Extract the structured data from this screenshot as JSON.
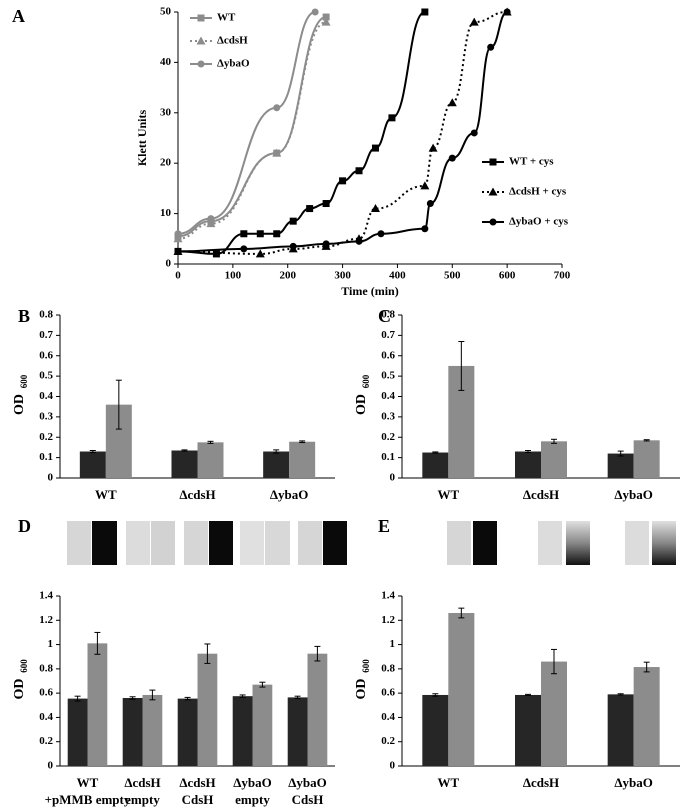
{
  "chart_data": [
    {
      "type": "line",
      "label": "A",
      "x_label": "Time (min)",
      "y_label": "Klett Units",
      "xlim": [
        0,
        700
      ],
      "xticks": [
        0,
        100,
        200,
        300,
        400,
        500,
        600,
        700
      ],
      "ylim": [
        0,
        50
      ],
      "yticks": [
        0,
        10,
        20,
        30,
        40,
        50
      ],
      "series": [
        {
          "name": "WT",
          "color": "#8c8c8c",
          "marker": "square",
          "line_style": "solid",
          "legend": "top-left",
          "x": [
            0,
            60,
            180,
            270
          ],
          "values": [
            5.5,
            8.5,
            22,
            49
          ]
        },
        {
          "name": "ΔcdsH",
          "color": "#8c8c8c",
          "marker": "triangle",
          "line_style": "dotted",
          "legend": "top-left",
          "x": [
            0,
            60,
            180,
            270
          ],
          "values": [
            5,
            8,
            22,
            48
          ]
        },
        {
          "name": "ΔybaO",
          "color": "#8c8c8c",
          "marker": "circle",
          "line_style": "solid",
          "legend": "top-left",
          "x": [
            0,
            60,
            180,
            250
          ],
          "values": [
            6,
            9,
            31,
            50
          ]
        },
        {
          "name": "WT + cys",
          "color": "#000000",
          "marker": "square",
          "line_style": "solid",
          "legend": "right",
          "x": [
            0,
            70,
            120,
            150,
            180,
            210,
            240,
            270,
            300,
            330,
            360,
            390,
            450
          ],
          "values": [
            2.5,
            2,
            6,
            6,
            6,
            8.5,
            11,
            12,
            16.5,
            18.5,
            23,
            29,
            50
          ]
        },
        {
          "name": "ΔcdsH + cys",
          "color": "#000000",
          "marker": "triangle",
          "line_style": "dotted",
          "legend": "right",
          "x": [
            0,
            150,
            210,
            270,
            330,
            360,
            450,
            465,
            500,
            540,
            600
          ],
          "values": [
            2.5,
            2,
            3,
            3.5,
            5,
            11,
            15.5,
            23,
            32,
            48,
            50
          ]
        },
        {
          "name": "ΔybaO + cys",
          "color": "#000000",
          "marker": "circle",
          "line_style": "solid",
          "legend": "right",
          "x": [
            0,
            120,
            210,
            270,
            330,
            370,
            450,
            460,
            500,
            540,
            570,
            600
          ],
          "values": [
            2.5,
            3,
            3.5,
            4,
            4.5,
            6,
            7,
            12,
            21,
            26,
            43,
            50
          ]
        }
      ]
    },
    {
      "type": "bar",
      "label": "B",
      "y_label": "OD",
      "y_label_sub": "600",
      "categories": [
        "WT",
        "ΔcdsH",
        "ΔybaO"
      ],
      "ylim": [
        0,
        0.8
      ],
      "yticks": [
        0,
        0.1,
        0.2,
        0.3,
        0.4,
        0.5,
        0.6,
        0.7,
        0.8
      ],
      "series": [
        {
          "color": "#262626",
          "values": [
            0.13,
            0.135,
            0.13
          ],
          "errors": [
            0.005,
            0.003,
            0.008
          ]
        },
        {
          "color": "#8c8c8c",
          "values": [
            0.36,
            0.175,
            0.178
          ],
          "errors": [
            0.12,
            0.005,
            0.004
          ]
        }
      ]
    },
    {
      "type": "bar",
      "label": "C",
      "y_label": "OD",
      "y_label_sub": "600",
      "categories": [
        "WT",
        "ΔcdsH",
        "ΔybaO"
      ],
      "ylim": [
        0,
        0.8
      ],
      "yticks": [
        0,
        0.1,
        0.2,
        0.3,
        0.4,
        0.5,
        0.6,
        0.7,
        0.8
      ],
      "series": [
        {
          "color": "#262626",
          "values": [
            0.125,
            0.13,
            0.12
          ],
          "errors": [
            0.003,
            0.005,
            0.012
          ]
        },
        {
          "color": "#8c8c8c",
          "values": [
            0.55,
            0.18,
            0.185
          ],
          "errors": [
            0.12,
            0.01,
            0.003
          ]
        }
      ]
    },
    {
      "type": "bar",
      "label": "D",
      "y_label": "OD",
      "y_label_sub": "600",
      "categories": [
        "WT",
        "ΔcdsH",
        "ΔcdsH",
        "ΔybaO",
        "ΔybaO"
      ],
      "category_sublabels": [
        "+pMMB empty",
        "empty",
        "CdsH",
        "empty",
        "CdsH"
      ],
      "ylim": [
        0,
        1.4
      ],
      "yticks": [
        0,
        0.2,
        0.4,
        0.6,
        0.8,
        1,
        1.2,
        1.4
      ],
      "series": [
        {
          "color": "#262626",
          "values": [
            0.555,
            0.56,
            0.555,
            0.575,
            0.565
          ],
          "errors": [
            0.02,
            0.01,
            0.01,
            0.01,
            0.01
          ]
        },
        {
          "color": "#8c8c8c",
          "values": [
            1.01,
            0.585,
            0.925,
            0.67,
            0.925
          ],
          "errors": [
            0.09,
            0.04,
            0.08,
            0.02,
            0.06
          ]
        }
      ]
    },
    {
      "type": "bar",
      "label": "E",
      "y_label": "OD",
      "y_label_sub": "600",
      "categories": [
        "WT",
        "ΔcdsH",
        "ΔybaO"
      ],
      "ylim": [
        0,
        1.4
      ],
      "yticks": [
        0,
        0.2,
        0.4,
        0.6,
        0.8,
        1,
        1.2,
        1.4
      ],
      "series": [
        {
          "color": "#262626",
          "values": [
            0.585,
            0.585,
            0.59
          ],
          "errors": [
            0.01,
            0.005,
            0.005
          ]
        },
        {
          "color": "#8c8c8c",
          "values": [
            1.26,
            0.86,
            0.815
          ],
          "errors": [
            0.04,
            0.1,
            0.04
          ]
        }
      ]
    }
  ]
}
